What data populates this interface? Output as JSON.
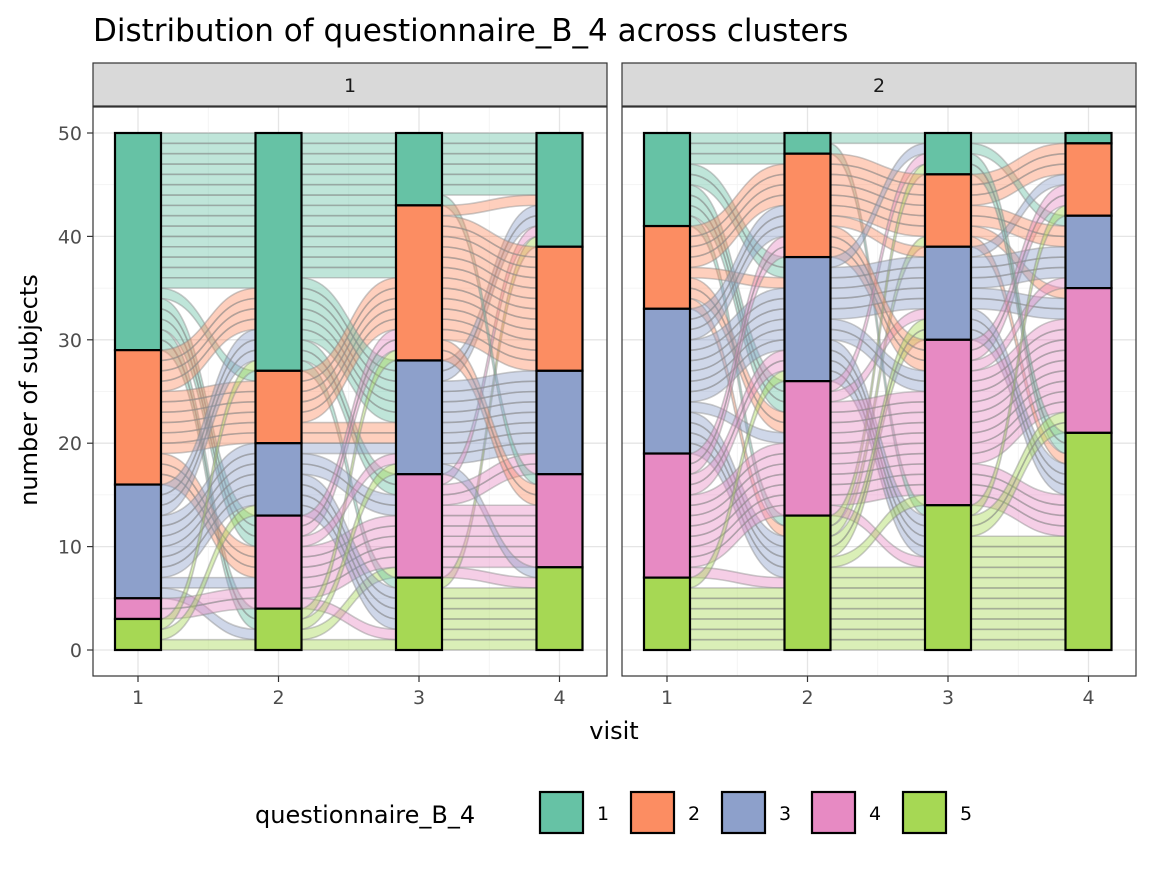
{
  "chart_data": {
    "type": "alluvial",
    "title": "Distribution of questionnaire_B_4 across clusters",
    "xlabel": "visit",
    "ylabel": "number of subjects",
    "ylim": [
      0,
      50
    ],
    "yticks": [
      0,
      10,
      20,
      30,
      40,
      50
    ],
    "visits": [
      "1",
      "2",
      "3",
      "4"
    ],
    "legend": {
      "title": "questionnaire_B_4",
      "position": "bottom",
      "categories": [
        "1",
        "2",
        "3",
        "4",
        "5"
      ]
    },
    "category_colors": {
      "1": "#66c2a5",
      "2": "#fc8d62",
      "3": "#8da0cb",
      "4": "#e78ac3",
      "5": "#a6d854"
    },
    "grid": true,
    "panels": [
      {
        "label": "1",
        "counts_by_visit": [
          {
            "1": 21,
            "2": 13,
            "3": 11,
            "4": 2,
            "5": 3
          },
          {
            "1": 23,
            "2": 7,
            "3": 7,
            "4": 9,
            "5": 4
          },
          {
            "1": 7,
            "2": 15,
            "3": 11,
            "4": 10,
            "5": 7
          },
          {
            "1": 11,
            "2": 12,
            "3": 10,
            "4": 9,
            "5": 8
          }
        ]
      },
      {
        "label": "2",
        "counts_by_visit": [
          {
            "1": 9,
            "2": 8,
            "3": 14,
            "4": 12,
            "5": 7
          },
          {
            "1": 2,
            "2": 10,
            "3": 12,
            "4": 13,
            "5": 13
          },
          {
            "1": 4,
            "2": 7,
            "3": 9,
            "4": 16,
            "5": 14
          },
          {
            "1": 1,
            "2": 7,
            "3": 7,
            "4": 14,
            "5": 21
          }
        ]
      }
    ]
  }
}
